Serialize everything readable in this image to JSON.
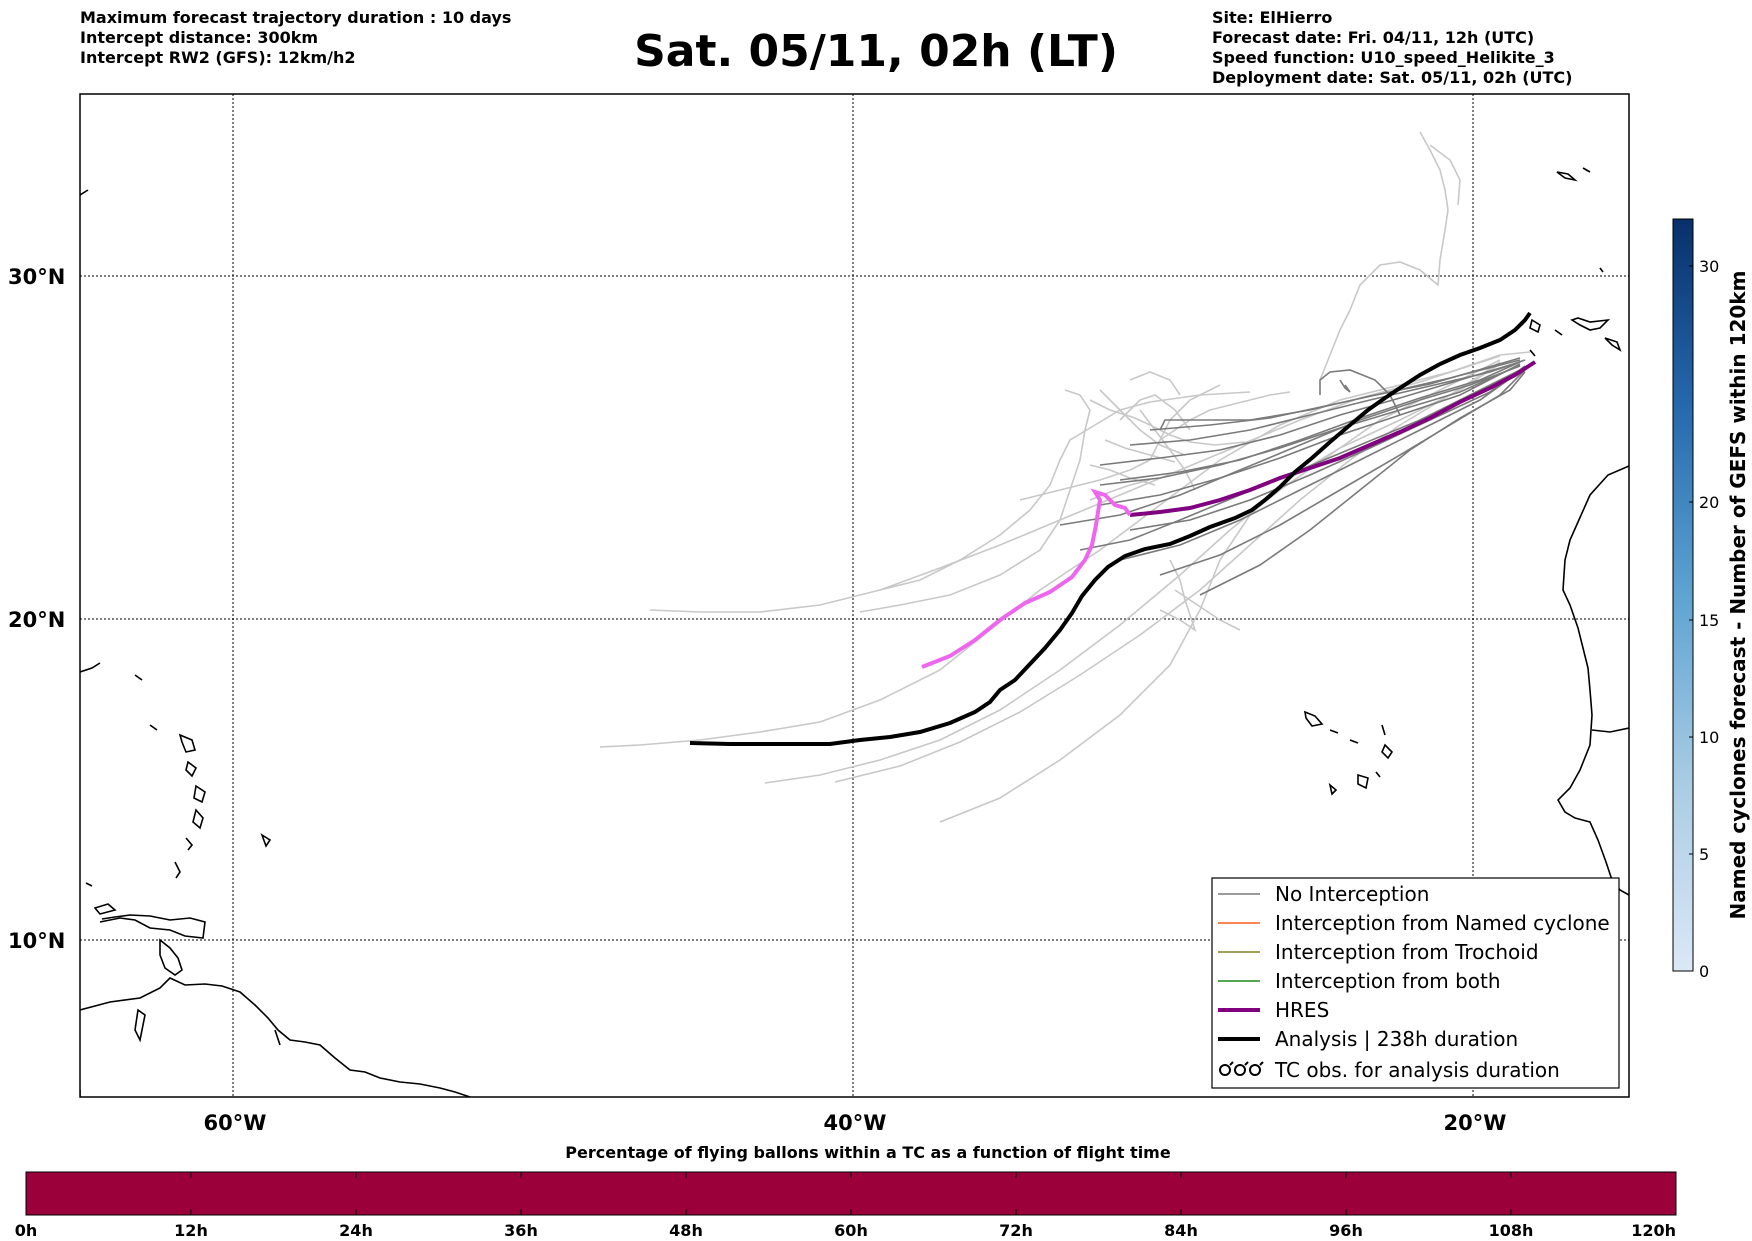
{
  "header": {
    "left_lines": [
      "Maximum forecast trajectory duration : 10 days",
      "Intercept distance: 300km",
      "Intercept RW2 (GFS):  12km/h2"
    ],
    "title": "Sat. 05/11, 02h (LT)",
    "right_lines": [
      "Site: ElHierro",
      "Forecast date: Fri. 04/11, 12h (UTC)",
      "Speed function: U10_speed_Helikite_3",
      "Deployment date: Sat. 05/11, 02h (UTC)"
    ]
  },
  "map": {
    "lat_labels": [
      "30°N",
      "20°N",
      "10°N"
    ],
    "lon_labels": [
      "60°W",
      "40°W",
      "20°W"
    ],
    "colors": {
      "no_interception": "#7a7a7a",
      "ensemble_far": "#c8c8c8",
      "named_cyclone": "#ff5a1e",
      "trochoid": "#808020",
      "both": "#1a8a1a",
      "hres": "#800080",
      "hres_light": "#ee66ee",
      "analysis": "#000000"
    }
  },
  "legend": {
    "items": [
      {
        "label": "No Interception",
        "style": "thin-gray"
      },
      {
        "label": "Interception from Named cyclone",
        "style": "thin-orange"
      },
      {
        "label": "Interception from Trochoid",
        "style": "thin-olive"
      },
      {
        "label": "Interception from both",
        "style": "thin-green"
      },
      {
        "label": "HRES",
        "style": "thick-purple"
      },
      {
        "label": "Analysis | 238h duration",
        "style": "thick-black"
      },
      {
        "label": "TC obs. for analysis duration",
        "style": "cyclone-symbols"
      }
    ]
  },
  "colorbar": {
    "label": "Named cyclones forecast - Number of GEFS within 120km",
    "ticks": [
      "0",
      "5",
      "10",
      "15",
      "20",
      "30"
    ]
  },
  "time_bar": {
    "title": "Percentage of flying ballons within a TC as a function of flight time",
    "color": "#9c003b",
    "ticks": [
      "0h",
      "12h",
      "24h",
      "36h",
      "48h",
      "60h",
      "72h",
      "84h",
      "96h",
      "108h",
      "120h"
    ]
  }
}
